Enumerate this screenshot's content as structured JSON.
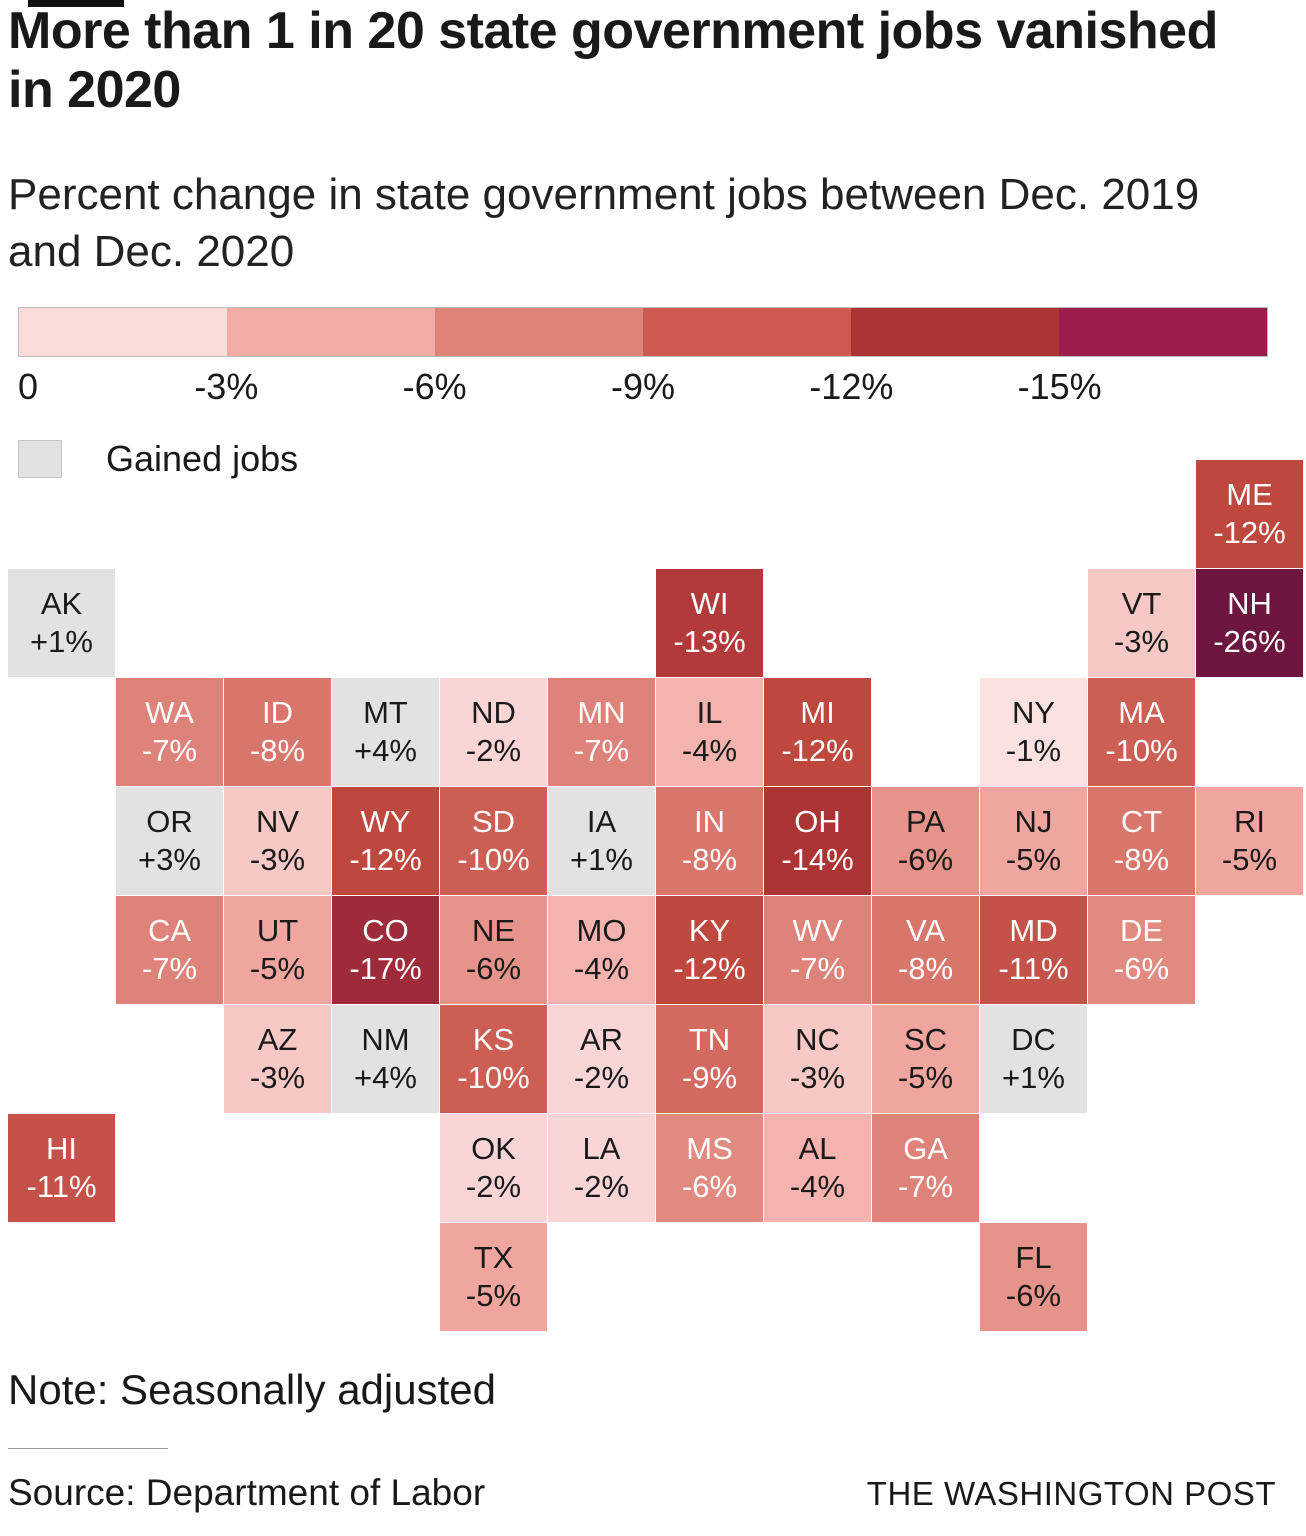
{
  "meta": {
    "title": "More than 1 in 20 state government jobs vanished in 2020",
    "subtitle": "Percent change in state government jobs between Dec. 2019 and Dec. 2020",
    "note": "Note: Seasonally adjusted",
    "source": "Source: Department of Labor",
    "credit": "THE WASHINGTON POST"
  },
  "legend": {
    "gained_label": "Gained jobs",
    "gained_color": "#e2e2e2",
    "scale_ticks": [
      "0",
      "-3%",
      "-6%",
      "-9%",
      "-12%",
      "-15%"
    ],
    "scale_colors": [
      "#fadcdb",
      "#f3aba5",
      "#df8379",
      "#cc5a50",
      "#ab3434",
      "#9b1d4c"
    ]
  },
  "chart_data": {
    "type": "heatmap",
    "variant": "us-state-tile-grid-cartogram",
    "title": "More than 1 in 20 state government jobs vanished in 2020",
    "metric": "Percent change in state government jobs between Dec. 2019 and Dec. 2020",
    "unit": "%",
    "gained_fill": "#e2e2e2",
    "states": [
      {
        "abbr": "ME",
        "value": -12,
        "label": "-12%",
        "col": 11,
        "row": 0,
        "color": "#be473e",
        "text": "light"
      },
      {
        "abbr": "AK",
        "value": 1,
        "label": "+1%",
        "col": 0,
        "row": 1,
        "color": "#e2e2e2",
        "text": "dark"
      },
      {
        "abbr": "WI",
        "value": -13,
        "label": "-13%",
        "col": 6,
        "row": 1,
        "color": "#b23a3a",
        "text": "light"
      },
      {
        "abbr": "VT",
        "value": -3,
        "label": "-3%",
        "col": 10,
        "row": 1,
        "color": "#f7c8c6",
        "text": "dark"
      },
      {
        "abbr": "NH",
        "value": -26,
        "label": "-26%",
        "col": 11,
        "row": 1,
        "color": "#6d1640",
        "text": "light"
      },
      {
        "abbr": "WA",
        "value": -7,
        "label": "-7%",
        "col": 1,
        "row": 2,
        "color": "#de8379",
        "text": "light"
      },
      {
        "abbr": "ID",
        "value": -8,
        "label": "-8%",
        "col": 2,
        "row": 2,
        "color": "#d8766c",
        "text": "light"
      },
      {
        "abbr": "MT",
        "value": 4,
        "label": "+4%",
        "col": 3,
        "row": 2,
        "color": "#e2e2e2",
        "text": "dark"
      },
      {
        "abbr": "ND",
        "value": -2,
        "label": "-2%",
        "col": 4,
        "row": 2,
        "color": "#f9d6d5",
        "text": "dark"
      },
      {
        "abbr": "MN",
        "value": -7,
        "label": "-7%",
        "col": 5,
        "row": 2,
        "color": "#de8379",
        "text": "light"
      },
      {
        "abbr": "IL",
        "value": -4,
        "label": "-4%",
        "col": 6,
        "row": 2,
        "color": "#f4b3ae",
        "text": "dark"
      },
      {
        "abbr": "MI",
        "value": -12,
        "label": "-12%",
        "col": 7,
        "row": 2,
        "color": "#be473e",
        "text": "light"
      },
      {
        "abbr": "NY",
        "value": -1,
        "label": "-1%",
        "col": 9,
        "row": 2,
        "color": "#fbe2e1",
        "text": "dark"
      },
      {
        "abbr": "MA",
        "value": -10,
        "label": "-10%",
        "col": 10,
        "row": 2,
        "color": "#cc5e54",
        "text": "light"
      },
      {
        "abbr": "OR",
        "value": 3,
        "label": "+3%",
        "col": 1,
        "row": 3,
        "color": "#e2e2e2",
        "text": "dark"
      },
      {
        "abbr": "NV",
        "value": -3,
        "label": "-3%",
        "col": 2,
        "row": 3,
        "color": "#f7c8c6",
        "text": "dark"
      },
      {
        "abbr": "WY",
        "value": -12,
        "label": "-12%",
        "col": 3,
        "row": 3,
        "color": "#be473e",
        "text": "light"
      },
      {
        "abbr": "SD",
        "value": -10,
        "label": "-10%",
        "col": 4,
        "row": 3,
        "color": "#cc5e54",
        "text": "light"
      },
      {
        "abbr": "IA",
        "value": 1,
        "label": "+1%",
        "col": 5,
        "row": 3,
        "color": "#e2e2e2",
        "text": "dark"
      },
      {
        "abbr": "IN",
        "value": -8,
        "label": "-8%",
        "col": 6,
        "row": 3,
        "color": "#d8766c",
        "text": "light"
      },
      {
        "abbr": "OH",
        "value": -14,
        "label": "-14%",
        "col": 7,
        "row": 3,
        "color": "#ac3434",
        "text": "light"
      },
      {
        "abbr": "PA",
        "value": -6,
        "label": "-6%",
        "col": 8,
        "row": 3,
        "color": "#e6938b",
        "text": "dark"
      },
      {
        "abbr": "NJ",
        "value": -5,
        "label": "-5%",
        "col": 9,
        "row": 3,
        "color": "#f1a59f",
        "text": "dark"
      },
      {
        "abbr": "CT",
        "value": -8,
        "label": "-8%",
        "col": 10,
        "row": 3,
        "color": "#d8766c",
        "text": "light"
      },
      {
        "abbr": "RI",
        "value": -5,
        "label": "-5%",
        "col": 11,
        "row": 3,
        "color": "#f1a59f",
        "text": "dark"
      },
      {
        "abbr": "CA",
        "value": -7,
        "label": "-7%",
        "col": 1,
        "row": 4,
        "color": "#de8379",
        "text": "light"
      },
      {
        "abbr": "UT",
        "value": -5,
        "label": "-5%",
        "col": 2,
        "row": 4,
        "color": "#f1a59f",
        "text": "dark"
      },
      {
        "abbr": "CO",
        "value": -17,
        "label": "-17%",
        "col": 3,
        "row": 4,
        "color": "#9e2a3a",
        "text": "light"
      },
      {
        "abbr": "NE",
        "value": -6,
        "label": "-6%",
        "col": 4,
        "row": 4,
        "color": "#e6938b",
        "text": "dark"
      },
      {
        "abbr": "MO",
        "value": -4,
        "label": "-4%",
        "col": 5,
        "row": 4,
        "color": "#f4b3ae",
        "text": "dark"
      },
      {
        "abbr": "KY",
        "value": -12,
        "label": "-12%",
        "col": 6,
        "row": 4,
        "color": "#be473e",
        "text": "light"
      },
      {
        "abbr": "WV",
        "value": -7,
        "label": "-7%",
        "col": 7,
        "row": 4,
        "color": "#de8379",
        "text": "light"
      },
      {
        "abbr": "VA",
        "value": -8,
        "label": "-8%",
        "col": 8,
        "row": 4,
        "color": "#d8766c",
        "text": "light"
      },
      {
        "abbr": "MD",
        "value": -11,
        "label": "-11%",
        "col": 9,
        "row": 4,
        "color": "#c55248",
        "text": "light"
      },
      {
        "abbr": "DE",
        "value": -6,
        "label": "-6%",
        "col": 10,
        "row": 4,
        "color": "#e08a80",
        "text": "light"
      },
      {
        "abbr": "AZ",
        "value": -3,
        "label": "-3%",
        "col": 2,
        "row": 5,
        "color": "#f7c8c6",
        "text": "dark"
      },
      {
        "abbr": "NM",
        "value": 4,
        "label": "+4%",
        "col": 3,
        "row": 5,
        "color": "#e2e2e2",
        "text": "dark"
      },
      {
        "abbr": "KS",
        "value": -10,
        "label": "-10%",
        "col": 4,
        "row": 5,
        "color": "#cc5e54",
        "text": "light"
      },
      {
        "abbr": "AR",
        "value": -2,
        "label": "-2%",
        "col": 5,
        "row": 5,
        "color": "#f9d6d5",
        "text": "dark"
      },
      {
        "abbr": "TN",
        "value": -9,
        "label": "-9%",
        "col": 6,
        "row": 5,
        "color": "#d26a60",
        "text": "light"
      },
      {
        "abbr": "NC",
        "value": -3,
        "label": "-3%",
        "col": 7,
        "row": 5,
        "color": "#f7c8c6",
        "text": "dark"
      },
      {
        "abbr": "SC",
        "value": -5,
        "label": "-5%",
        "col": 8,
        "row": 5,
        "color": "#f1a59f",
        "text": "dark"
      },
      {
        "abbr": "DC",
        "value": 1,
        "label": "+1%",
        "col": 9,
        "row": 5,
        "color": "#e2e2e2",
        "text": "dark"
      },
      {
        "abbr": "HI",
        "value": -11,
        "label": "-11%",
        "col": 0,
        "row": 6,
        "color": "#c55248",
        "text": "light"
      },
      {
        "abbr": "OK",
        "value": -2,
        "label": "-2%",
        "col": 4,
        "row": 6,
        "color": "#f9d6d5",
        "text": "dark"
      },
      {
        "abbr": "LA",
        "value": -2,
        "label": "-2%",
        "col": 5,
        "row": 6,
        "color": "#f9d6d5",
        "text": "dark"
      },
      {
        "abbr": "MS",
        "value": -6,
        "label": "-6%",
        "col": 6,
        "row": 6,
        "color": "#e08a80",
        "text": "light"
      },
      {
        "abbr": "AL",
        "value": -4,
        "label": "-4%",
        "col": 7,
        "row": 6,
        "color": "#f4b3ae",
        "text": "dark"
      },
      {
        "abbr": "GA",
        "value": -7,
        "label": "-7%",
        "col": 8,
        "row": 6,
        "color": "#de8379",
        "text": "light"
      },
      {
        "abbr": "TX",
        "value": -5,
        "label": "-5%",
        "col": 4,
        "row": 7,
        "color": "#f1a59f",
        "text": "dark"
      },
      {
        "abbr": "FL",
        "value": -6,
        "label": "-6%",
        "col": 9,
        "row": 7,
        "color": "#e6938b",
        "text": "dark"
      }
    ]
  }
}
